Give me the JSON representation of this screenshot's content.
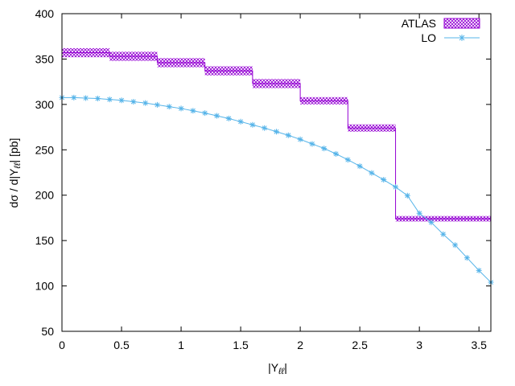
{
  "chart_data": {
    "type": "line",
    "xlabel": "|Y",
    "xlabel_sub": "ℓℓ",
    "xlabel_end": "|",
    "ylabel": "dσ / d|Y",
    "ylabel_sub": "ℓℓ",
    "ylabel_end": "| [pb]",
    "xlim": [
      0,
      3.6
    ],
    "ylim": [
      50,
      400
    ],
    "xticks": [
      "0",
      "0.5",
      "1",
      "1.5",
      "2",
      "2.5",
      "3",
      "3.5"
    ],
    "yticks": [
      "50",
      "100",
      "150",
      "200",
      "250",
      "300",
      "350",
      "400"
    ],
    "grid": false,
    "legend_position": "top-right",
    "colors": {
      "atlas": "#9400d3",
      "lo": "#56b4e9"
    },
    "series": [
      {
        "name": "ATLAS",
        "style": "step-band",
        "bins": [
          {
            "x0": 0.0,
            "x1": 0.4,
            "y": 357,
            "err": 5
          },
          {
            "x0": 0.4,
            "x1": 0.8,
            "y": 353,
            "err": 5
          },
          {
            "x0": 0.8,
            "x1": 1.2,
            "y": 346,
            "err": 5
          },
          {
            "x0": 1.2,
            "x1": 1.6,
            "y": 337,
            "err": 5
          },
          {
            "x0": 1.6,
            "x1": 2.0,
            "y": 323,
            "err": 5
          },
          {
            "x0": 2.0,
            "x1": 2.4,
            "y": 304,
            "err": 4
          },
          {
            "x0": 2.4,
            "x1": 2.8,
            "y": 274,
            "err": 4
          },
          {
            "x0": 2.8,
            "x1": 3.6,
            "y": 174,
            "err": 3
          }
        ]
      },
      {
        "name": "LO",
        "style": "line-points",
        "x": [
          0.0,
          0.1,
          0.2,
          0.3,
          0.4,
          0.5,
          0.6,
          0.7,
          0.8,
          0.9,
          1.0,
          1.1,
          1.2,
          1.3,
          1.4,
          1.5,
          1.6,
          1.7,
          1.8,
          1.9,
          2.0,
          2.1,
          2.2,
          2.3,
          2.4,
          2.5,
          2.6,
          2.7,
          2.8,
          2.9,
          3.0,
          3.1,
          3.2,
          3.3,
          3.4,
          3.5,
          3.6
        ],
        "y": [
          307.5,
          307.5,
          307.0,
          306.5,
          305.5,
          304.5,
          303.0,
          301.5,
          299.5,
          297.5,
          295.5,
          293.0,
          290.5,
          287.5,
          284.5,
          281.0,
          277.5,
          274.0,
          270.0,
          266.0,
          261.5,
          256.5,
          251.5,
          245.5,
          239.0,
          232.0,
          224.5,
          217.0,
          209.0,
          199.5,
          180.0,
          170.0,
          157.0,
          145.0,
          131.0,
          117.0,
          104.0
        ]
      }
    ]
  }
}
